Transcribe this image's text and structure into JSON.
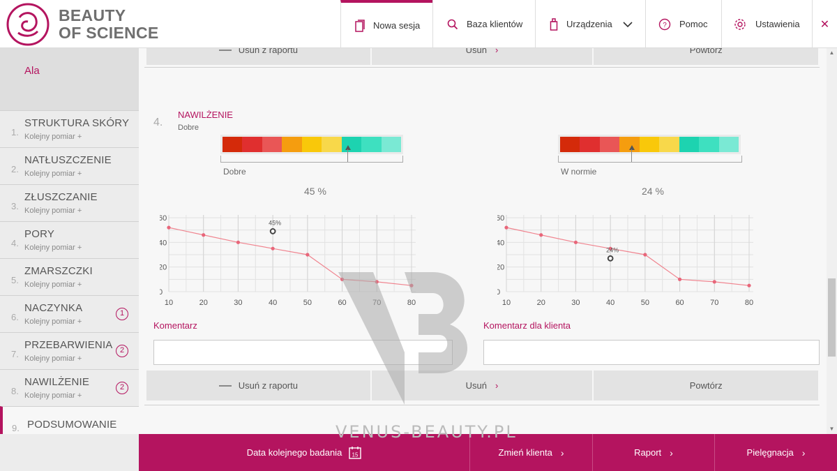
{
  "brand": {
    "line1": "BEAUTY",
    "line2": "OF SCIENCE"
  },
  "nav": [
    {
      "label": "Nowa sesja",
      "icon": "tablet-icon"
    },
    {
      "label": "Baza klientów",
      "icon": "search-icon"
    },
    {
      "label": "Urządzenia",
      "icon": "device-icon"
    },
    {
      "label": "Pomoc",
      "icon": "help-icon"
    },
    {
      "label": "Ustawienia",
      "icon": "gear-icon"
    }
  ],
  "client": {
    "name": "Ala"
  },
  "sidebar": [
    {
      "num": "1.",
      "title": "STRUKTURA SKÓRY",
      "sub": "Kolejny pomiar +",
      "badge": ""
    },
    {
      "num": "2.",
      "title": "NATŁUSZCZENIE",
      "sub": "Kolejny pomiar +",
      "badge": ""
    },
    {
      "num": "3.",
      "title": "ZŁUSZCZANIE",
      "sub": "Kolejny pomiar +",
      "badge": ""
    },
    {
      "num": "4.",
      "title": "PORY",
      "sub": "Kolejny pomiar +",
      "badge": ""
    },
    {
      "num": "5.",
      "title": "ZMARSZCZKI",
      "sub": "Kolejny pomiar +",
      "badge": ""
    },
    {
      "num": "6.",
      "title": "NACZYNKA",
      "sub": "Kolejny pomiar +",
      "badge": "1"
    },
    {
      "num": "7.",
      "title": "PRZEBARWIENIA",
      "sub": "Kolejny pomiar +",
      "badge": "2"
    },
    {
      "num": "8.",
      "title": "NAWILŻENIE",
      "sub": "Kolejny pomiar +",
      "badge": "2"
    },
    {
      "num": "9.",
      "title": "PODSUMOWANIE",
      "sub": "",
      "badge": ""
    }
  ],
  "actions": {
    "remove": "Usuń z raportu",
    "delete": "Usuń",
    "repeat": "Powtórz"
  },
  "section": {
    "num": "4.",
    "title": "NAWILŻENIE",
    "status": "Dobre"
  },
  "scale_colors": [
    "#d42a0a",
    "#e02f2f",
    "#e95656",
    "#f59d0f",
    "#f9c80a",
    "#f8d84a",
    "#1dd3b0",
    "#3ee0c0",
    "#7ae9d4"
  ],
  "left": {
    "scale_label": "Dobre",
    "value": 45,
    "value_text": "45 %",
    "marker_label": "45%",
    "comment_label": "Komentarz"
  },
  "right": {
    "scale_label": "W normie",
    "value": 24,
    "value_text": "24 %",
    "marker_label": "24%",
    "comment_label": "Komentarz dla klienta"
  },
  "chart_data": [
    {
      "type": "line",
      "x": [
        10,
        20,
        30,
        40,
        50,
        60,
        70,
        80
      ],
      "y": [
        52,
        46,
        40,
        35,
        30,
        10,
        8,
        5
      ],
      "xlim": [
        10,
        80
      ],
      "ylim": [
        0,
        60
      ],
      "yticks": [
        0,
        20,
        40,
        60
      ],
      "marker": {
        "x": 40,
        "y": 49,
        "label": "45%"
      },
      "grid": true
    },
    {
      "type": "line",
      "x": [
        10,
        20,
        30,
        40,
        50,
        60,
        70,
        80
      ],
      "y": [
        52,
        46,
        40,
        35,
        30,
        10,
        8,
        5
      ],
      "xlim": [
        10,
        80
      ],
      "ylim": [
        0,
        60
      ],
      "yticks": [
        0,
        20,
        40,
        60
      ],
      "marker": {
        "x": 40,
        "y": 27,
        "label": "24%"
      },
      "grid": true
    }
  ],
  "footer": {
    "next_exam": "Data kolejnego badania",
    "calendar_day": "15",
    "change_client": "Zmień klienta",
    "report": "Raport",
    "care": "Pielęgnacja"
  },
  "watermark": {
    "text": "VENUS-BEAUTY.PL"
  }
}
